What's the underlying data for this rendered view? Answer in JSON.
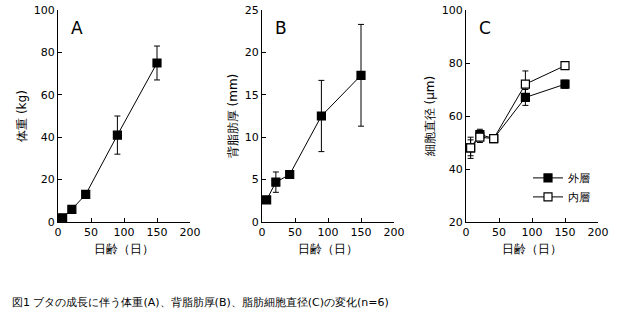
{
  "caption": "図1 ブタの成長に伴う体重(A)、背脂肪厚(B)、脂肪細胞直径(C)の変化(n=6)",
  "chart_data": [
    {
      "type": "line",
      "title": "A",
      "x_label": "日齢（日）",
      "y_label": "体重 (kg)",
      "x": [
        7,
        21,
        42,
        90,
        150
      ],
      "values": [
        2,
        6,
        13,
        41,
        75
      ],
      "error": [
        0.5,
        1,
        1.5,
        9,
        8
      ],
      "color": "#000000",
      "marker": "square",
      "xlim": [
        0,
        200
      ],
      "xticks": [
        0,
        50,
        100,
        150,
        200
      ],
      "ylim": [
        0,
        100
      ],
      "yticks": [
        0,
        20,
        40,
        60,
        80,
        100
      ],
      "grid": false
    },
    {
      "type": "line",
      "title": "B",
      "x_label": "日齢（日）",
      "y_label": "背脂肪厚 (mm)",
      "x": [
        7,
        21,
        42,
        90,
        150
      ],
      "values": [
        2.6,
        4.7,
        5.6,
        12.5,
        17.3
      ],
      "error": [
        0.3,
        1.2,
        0.4,
        4.2,
        6
      ],
      "color": "#000000",
      "marker": "square",
      "xlim": [
        0,
        200
      ],
      "xticks": [
        0,
        50,
        100,
        150,
        200
      ],
      "ylim": [
        0,
        25
      ],
      "yticks": [
        0,
        5,
        10,
        15,
        20,
        25
      ],
      "grid": false
    },
    {
      "type": "line",
      "title": "C",
      "x_label": "日齢（日）",
      "y_label": "細胞直径 (μm)",
      "x": [
        7,
        21,
        42,
        90,
        150
      ],
      "series": [
        {
          "name": "外層",
          "color": "#000000",
          "marker": "square",
          "values": [
            48,
            53,
            51.5,
            67,
            72
          ],
          "error": [
            3,
            2,
            1,
            3,
            1.5
          ]
        },
        {
          "name": "内層",
          "color": "#000000",
          "marker": "square-open",
          "values": [
            48,
            52,
            51.5,
            72,
            79
          ],
          "error": [
            4,
            2,
            1,
            5,
            1
          ]
        }
      ],
      "xlim": [
        0,
        200
      ],
      "xticks": [
        0,
        50,
        100,
        150,
        200
      ],
      "ylim": [
        20,
        100
      ],
      "yticks": [
        20,
        40,
        60,
        80,
        100
      ],
      "grid": false,
      "legend": "lower right"
    }
  ]
}
